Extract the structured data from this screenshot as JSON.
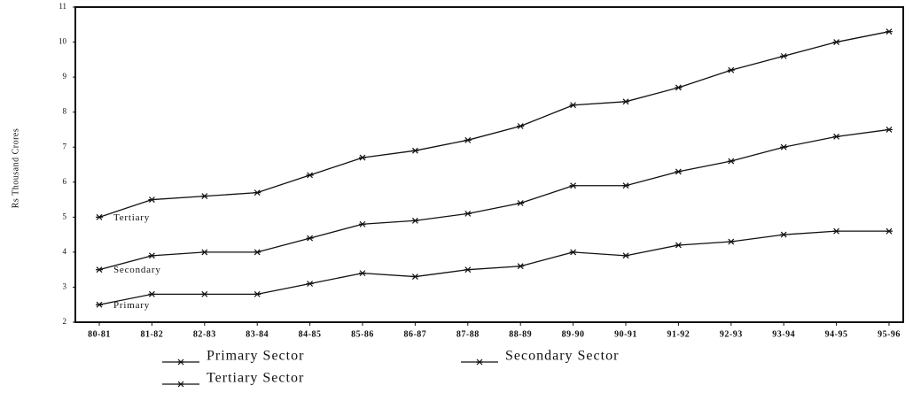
{
  "chart_data": {
    "type": "line",
    "y_label": "Rs Thousand Crores",
    "categories": [
      "80-81",
      "81-82",
      "82-83",
      "83-84",
      "84-85",
      "85-86",
      "86-87",
      "87-88",
      "88-89",
      "89-90",
      "90-91",
      "91-92",
      "92-93",
      "93-94",
      "94-95",
      "95-96"
    ],
    "series": [
      {
        "name": "Primary Sector",
        "color": "#111111",
        "values": [
          2.5,
          2.8,
          2.8,
          2.8,
          3.1,
          3.4,
          3.3,
          3.5,
          3.6,
          4.0,
          3.9,
          4.2,
          4.3,
          4.5,
          4.6,
          4.6
        ]
      },
      {
        "name": "Secondary Sector",
        "color": "#111111",
        "values": [
          3.5,
          3.9,
          4.0,
          4.0,
          4.4,
          4.8,
          4.9,
          5.1,
          5.4,
          5.9,
          5.9,
          6.3,
          6.6,
          7.0,
          7.3,
          7.5
        ]
      },
      {
        "name": "Tertiary Sector",
        "color": "#111111",
        "values": [
          5.0,
          5.5,
          5.6,
          5.7,
          6.2,
          6.7,
          6.9,
          7.2,
          7.6,
          8.2,
          8.3,
          8.7,
          9.2,
          9.6,
          10.0,
          10.3
        ]
      }
    ],
    "annotations": [
      "Primary",
      "Secondary",
      "Tertiary"
    ],
    "ylim": [
      2,
      11
    ],
    "yticks": [
      2,
      3,
      4,
      5,
      6,
      7,
      8,
      9,
      10,
      11
    ],
    "grid": false
  }
}
